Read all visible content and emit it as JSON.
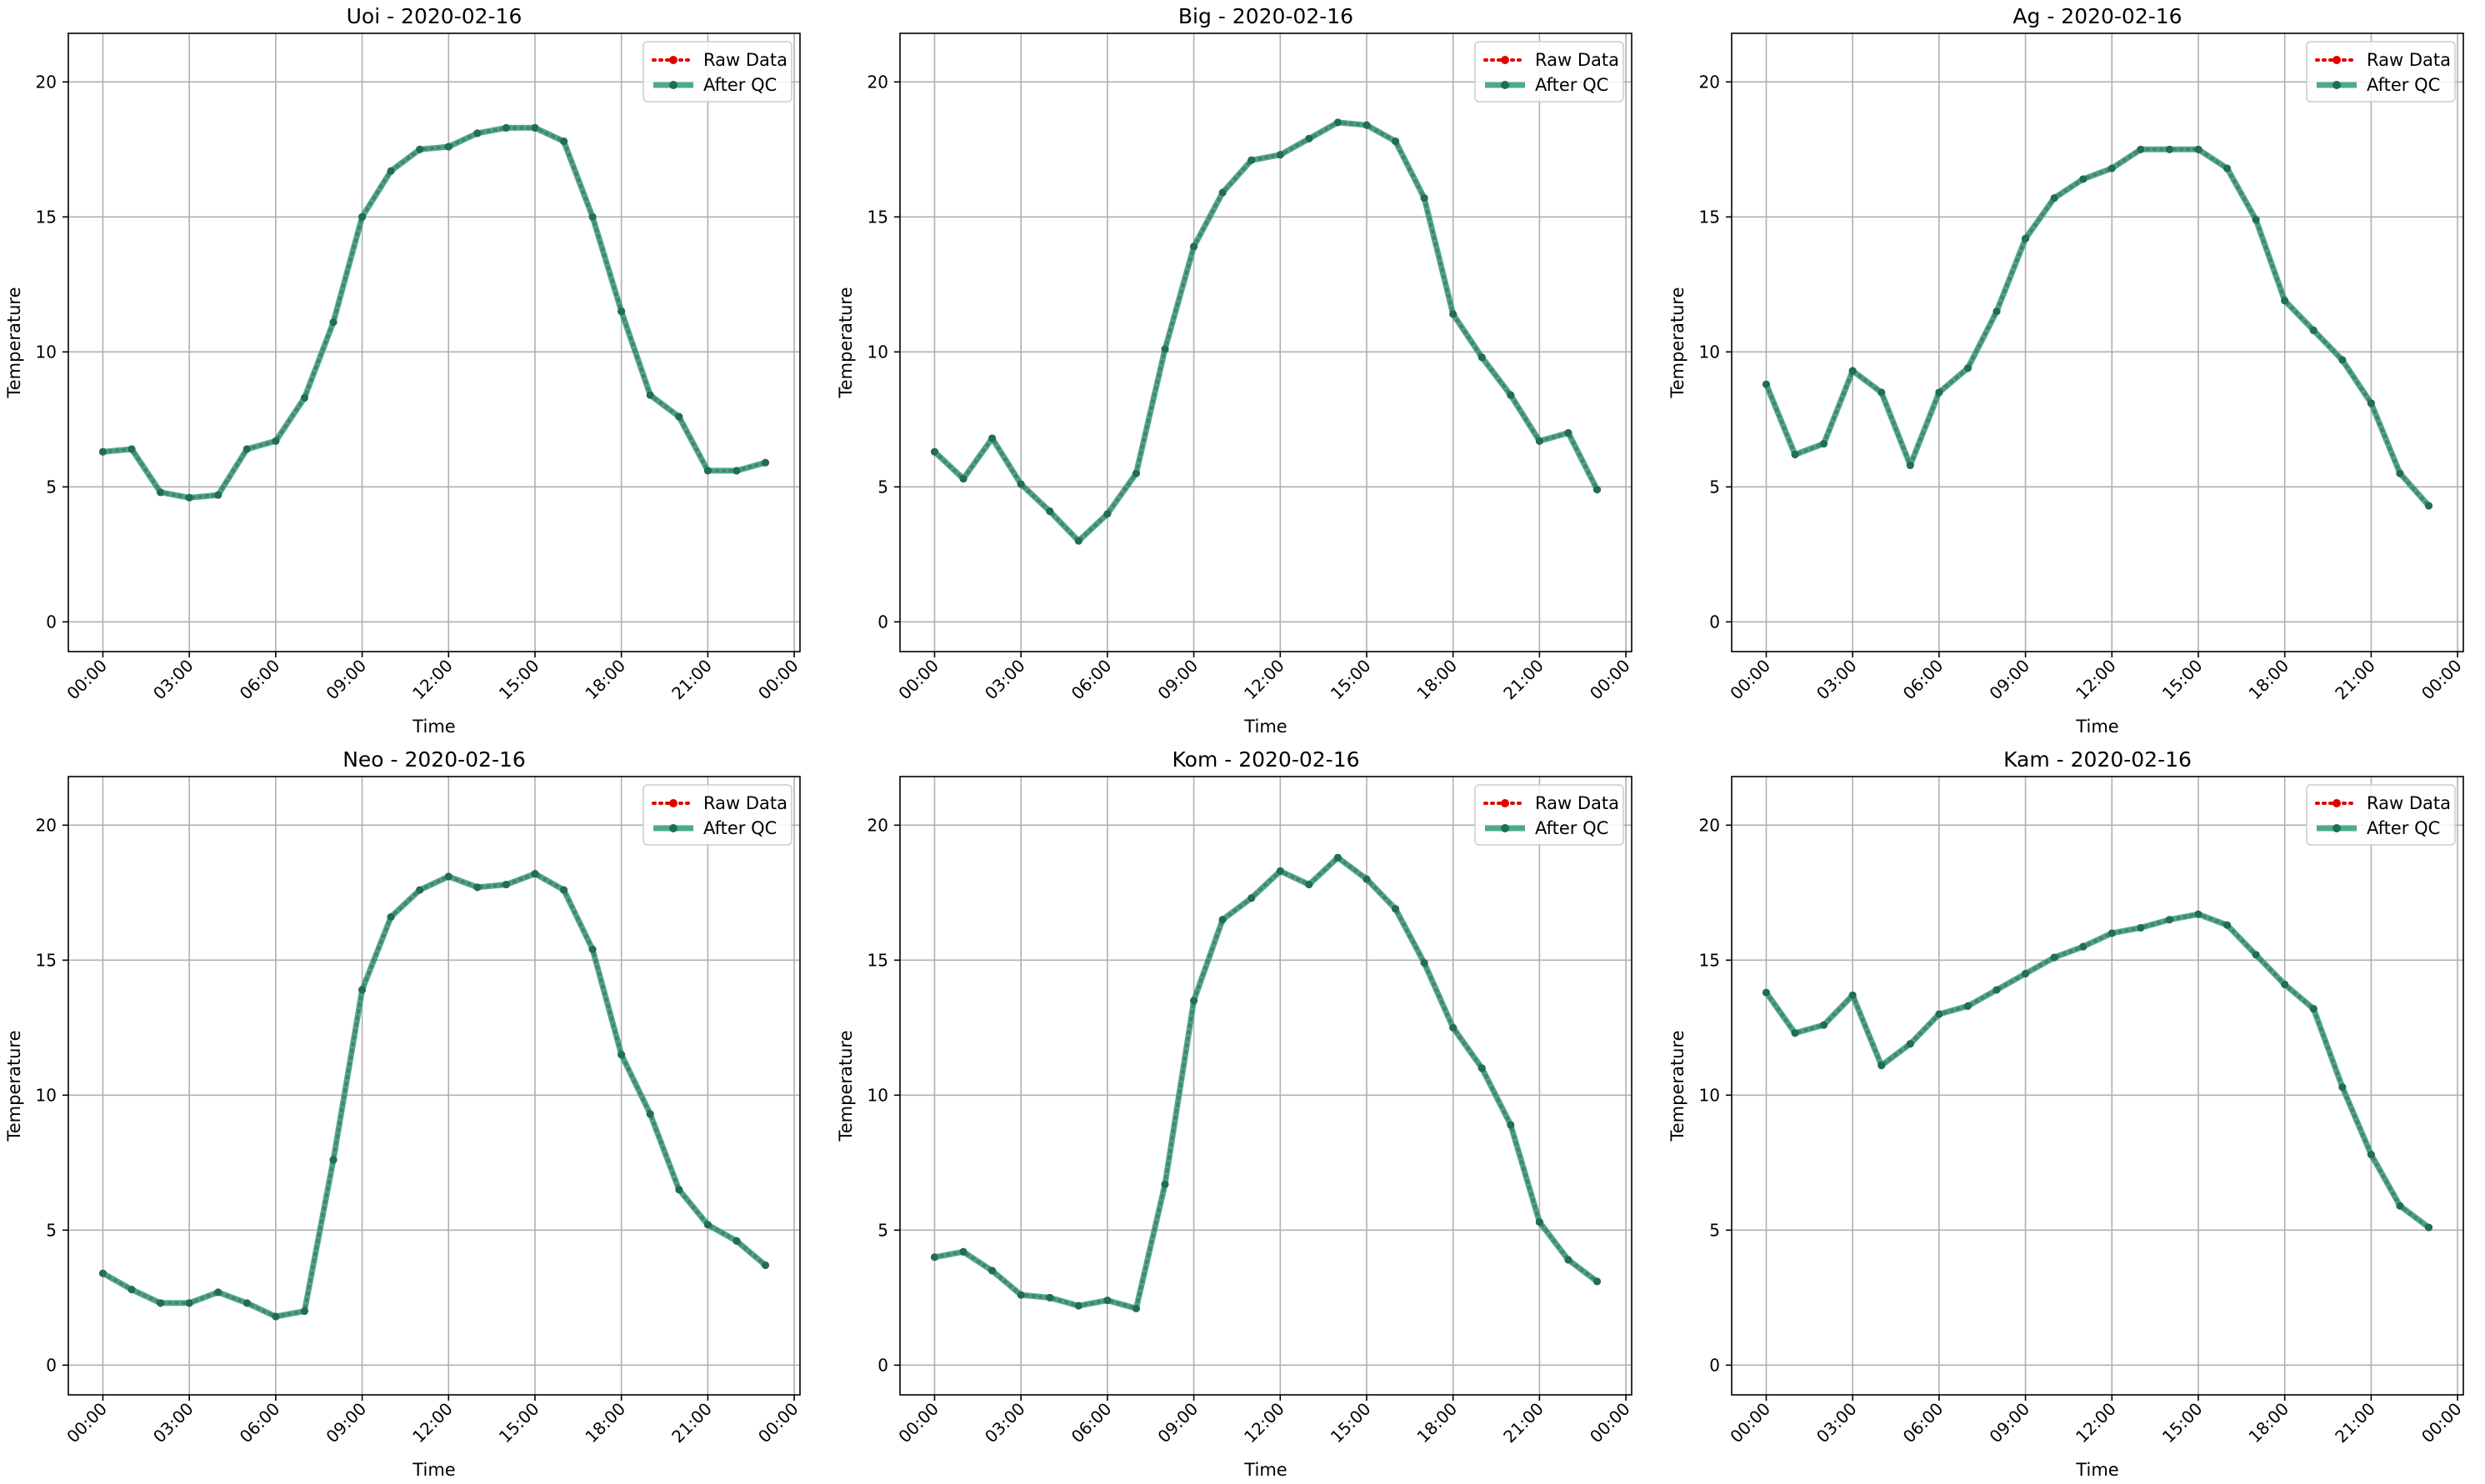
{
  "colors": {
    "raw": "#e00000",
    "qc": "#2f9a7d",
    "qc_marker": "#1e6e58",
    "grid": "#b0b0b0"
  },
  "chart_data": [
    {
      "type": "line",
      "title": "Uoi - 2020-02-16",
      "xlabel": "Time",
      "ylabel": "Temperature",
      "x_ticks": [
        "00:00",
        "03:00",
        "06:00",
        "09:00",
        "12:00",
        "15:00",
        "18:00",
        "21:00",
        "00:00"
      ],
      "y_ticks": [
        0,
        5,
        10,
        15,
        20
      ],
      "xlim_hours": [
        -1.2,
        24.2
      ],
      "ylim": [
        -1.1,
        21.8
      ],
      "grid": true,
      "legend_position": "top-right",
      "x_hours": [
        0,
        1,
        2,
        3,
        4,
        5,
        6,
        7,
        8,
        9,
        10,
        11,
        12,
        13,
        14,
        15,
        16,
        17,
        18,
        19,
        20,
        21,
        22,
        23
      ],
      "series": [
        {
          "name": "Raw Data",
          "style": "dotted",
          "values": [
            6.3,
            6.4,
            4.8,
            4.6,
            4.7,
            6.4,
            6.7,
            8.3,
            11.1,
            15.0,
            16.7,
            17.5,
            17.6,
            18.1,
            18.3,
            18.3,
            17.8,
            15.0,
            11.5,
            8.4,
            7.6,
            5.6,
            5.6,
            5.9
          ]
        },
        {
          "name": "After QC",
          "style": "solid",
          "values": [
            6.3,
            6.4,
            4.8,
            4.6,
            4.7,
            6.4,
            6.7,
            8.3,
            11.1,
            15.0,
            16.7,
            17.5,
            17.6,
            18.1,
            18.3,
            18.3,
            17.8,
            15.0,
            11.5,
            8.4,
            7.6,
            5.6,
            5.6,
            5.9
          ]
        }
      ]
    },
    {
      "type": "line",
      "title": "Big - 2020-02-16",
      "xlabel": "Time",
      "ylabel": "Temperature",
      "x_ticks": [
        "00:00",
        "03:00",
        "06:00",
        "09:00",
        "12:00",
        "15:00",
        "18:00",
        "21:00",
        "00:00"
      ],
      "y_ticks": [
        0,
        5,
        10,
        15,
        20
      ],
      "xlim_hours": [
        -1.2,
        24.2
      ],
      "ylim": [
        -1.1,
        21.8
      ],
      "grid": true,
      "legend_position": "top-right",
      "x_hours": [
        0,
        1,
        2,
        3,
        4,
        5,
        6,
        7,
        8,
        9,
        10,
        11,
        12,
        13,
        14,
        15,
        16,
        17,
        18,
        19,
        20,
        21,
        22,
        23
      ],
      "series": [
        {
          "name": "Raw Data",
          "style": "dotted",
          "values": [
            6.3,
            5.3,
            6.8,
            5.1,
            4.1,
            3.0,
            4.0,
            5.5,
            10.1,
            13.9,
            15.9,
            17.1,
            17.3,
            17.9,
            18.5,
            18.4,
            17.8,
            15.7,
            11.4,
            9.8,
            8.4,
            6.7,
            7.0,
            4.9
          ]
        },
        {
          "name": "After QC",
          "style": "solid",
          "values": [
            6.3,
            5.3,
            6.8,
            5.1,
            4.1,
            3.0,
            4.0,
            5.5,
            10.1,
            13.9,
            15.9,
            17.1,
            17.3,
            17.9,
            18.5,
            18.4,
            17.8,
            15.7,
            11.4,
            9.8,
            8.4,
            6.7,
            7.0,
            4.9
          ]
        }
      ]
    },
    {
      "type": "line",
      "title": "Ag - 2020-02-16",
      "xlabel": "Time",
      "ylabel": "Temperature",
      "x_ticks": [
        "00:00",
        "03:00",
        "06:00",
        "09:00",
        "12:00",
        "15:00",
        "18:00",
        "21:00",
        "00:00"
      ],
      "y_ticks": [
        0,
        5,
        10,
        15,
        20
      ],
      "xlim_hours": [
        -1.2,
        24.2
      ],
      "ylim": [
        -1.1,
        21.8
      ],
      "grid": true,
      "legend_position": "top-right",
      "x_hours": [
        0,
        1,
        2,
        3,
        4,
        5,
        6,
        7,
        8,
        9,
        10,
        11,
        12,
        13,
        14,
        15,
        16,
        17,
        18,
        19,
        20,
        21,
        22,
        23
      ],
      "series": [
        {
          "name": "Raw Data",
          "style": "dotted",
          "values": [
            8.8,
            6.2,
            6.6,
            9.3,
            8.5,
            5.8,
            8.5,
            9.4,
            11.5,
            14.2,
            15.7,
            16.4,
            16.8,
            17.5,
            17.5,
            17.5,
            16.8,
            14.9,
            11.9,
            10.8,
            9.7,
            8.1,
            5.5,
            4.3
          ]
        },
        {
          "name": "After QC",
          "style": "solid",
          "values": [
            8.8,
            6.2,
            6.6,
            9.3,
            8.5,
            5.8,
            8.5,
            9.4,
            11.5,
            14.2,
            15.7,
            16.4,
            16.8,
            17.5,
            17.5,
            17.5,
            16.8,
            14.9,
            11.9,
            10.8,
            9.7,
            8.1,
            5.5,
            4.3
          ]
        }
      ]
    },
    {
      "type": "line",
      "title": "Neo - 2020-02-16",
      "xlabel": "Time",
      "ylabel": "Temperature",
      "x_ticks": [
        "00:00",
        "03:00",
        "06:00",
        "09:00",
        "12:00",
        "15:00",
        "18:00",
        "21:00",
        "00:00"
      ],
      "y_ticks": [
        0,
        5,
        10,
        15,
        20
      ],
      "xlim_hours": [
        -1.2,
        24.2
      ],
      "ylim": [
        -1.1,
        21.8
      ],
      "grid": true,
      "legend_position": "top-right",
      "x_hours": [
        0,
        1,
        2,
        3,
        4,
        5,
        6,
        7,
        8,
        9,
        10,
        11,
        12,
        13,
        14,
        15,
        16,
        17,
        18,
        19,
        20,
        21,
        22,
        23
      ],
      "series": [
        {
          "name": "Raw Data",
          "style": "dotted",
          "values": [
            3.4,
            2.8,
            2.3,
            2.3,
            2.7,
            2.3,
            1.8,
            2.0,
            7.6,
            13.9,
            16.6,
            17.6,
            18.1,
            17.7,
            17.8,
            18.2,
            17.6,
            15.4,
            11.5,
            9.3,
            6.5,
            5.2,
            4.6,
            3.7
          ]
        },
        {
          "name": "After QC",
          "style": "solid",
          "values": [
            3.4,
            2.8,
            2.3,
            2.3,
            2.7,
            2.3,
            1.8,
            2.0,
            7.6,
            13.9,
            16.6,
            17.6,
            18.1,
            17.7,
            17.8,
            18.2,
            17.6,
            15.4,
            11.5,
            9.3,
            6.5,
            5.2,
            4.6,
            3.7
          ]
        }
      ]
    },
    {
      "type": "line",
      "title": "Kom - 2020-02-16",
      "xlabel": "Time",
      "ylabel": "Temperature",
      "x_ticks": [
        "00:00",
        "03:00",
        "06:00",
        "09:00",
        "12:00",
        "15:00",
        "18:00",
        "21:00",
        "00:00"
      ],
      "y_ticks": [
        0,
        5,
        10,
        15,
        20
      ],
      "xlim_hours": [
        -1.2,
        24.2
      ],
      "ylim": [
        -1.1,
        21.8
      ],
      "grid": true,
      "legend_position": "top-right",
      "x_hours": [
        0,
        1,
        2,
        3,
        4,
        5,
        6,
        7,
        8,
        9,
        10,
        11,
        12,
        13,
        14,
        15,
        16,
        17,
        18,
        19,
        20,
        21,
        22,
        23
      ],
      "series": [
        {
          "name": "Raw Data",
          "style": "dotted",
          "values": [
            4.0,
            4.2,
            3.5,
            2.6,
            2.5,
            2.2,
            2.4,
            2.1,
            6.7,
            13.5,
            16.5,
            17.3,
            18.3,
            17.8,
            18.8,
            18.0,
            16.9,
            14.9,
            12.5,
            11.0,
            8.9,
            5.3,
            3.9,
            3.1
          ]
        },
        {
          "name": "After QC",
          "style": "solid",
          "values": [
            4.0,
            4.2,
            3.5,
            2.6,
            2.5,
            2.2,
            2.4,
            2.1,
            6.7,
            13.5,
            16.5,
            17.3,
            18.3,
            17.8,
            18.8,
            18.0,
            16.9,
            14.9,
            12.5,
            11.0,
            8.9,
            5.3,
            3.9,
            3.1
          ]
        }
      ]
    },
    {
      "type": "line",
      "title": "Kam - 2020-02-16",
      "xlabel": "Time",
      "ylabel": "Temperature",
      "x_ticks": [
        "00:00",
        "03:00",
        "06:00",
        "09:00",
        "12:00",
        "15:00",
        "18:00",
        "21:00",
        "00:00"
      ],
      "y_ticks": [
        0,
        5,
        10,
        15,
        20
      ],
      "xlim_hours": [
        -1.2,
        24.2
      ],
      "ylim": [
        -1.1,
        21.8
      ],
      "grid": true,
      "legend_position": "top-right",
      "x_hours": [
        0,
        1,
        2,
        3,
        4,
        5,
        6,
        7,
        8,
        9,
        10,
        11,
        12,
        13,
        14,
        15,
        16,
        17,
        18,
        19,
        20,
        21,
        22,
        23
      ],
      "series": [
        {
          "name": "Raw Data",
          "style": "dotted",
          "values": [
            13.8,
            12.3,
            12.6,
            13.7,
            11.1,
            11.9,
            13.0,
            13.3,
            13.9,
            14.5,
            15.1,
            15.5,
            16.0,
            16.2,
            16.5,
            16.7,
            16.3,
            15.2,
            14.1,
            13.2,
            10.3,
            7.8,
            5.9,
            5.1
          ]
        },
        {
          "name": "After QC",
          "style": "solid",
          "values": [
            13.8,
            12.3,
            12.6,
            13.7,
            11.1,
            11.9,
            13.0,
            13.3,
            13.9,
            14.5,
            15.1,
            15.5,
            16.0,
            16.2,
            16.5,
            16.7,
            16.3,
            15.2,
            14.1,
            13.2,
            10.3,
            7.8,
            5.9,
            5.1
          ]
        }
      ]
    }
  ]
}
